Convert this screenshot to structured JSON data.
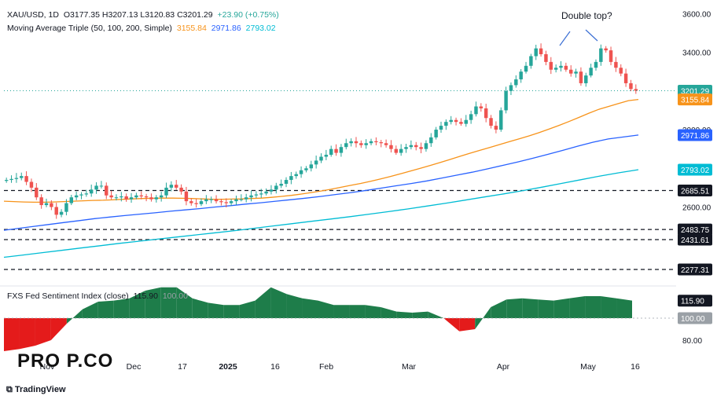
{
  "legend": {
    "symbol": "XAU/USD, 1D",
    "ohlc": "O3177.35  H3207.13  L3120.83  C3201.29",
    "change": "+23.90 (+0.75%)",
    "ma_label": "Moving Average Triple (50, 100, 200, Simple)",
    "ma50": "3155.84",
    "ma100": "2971.86",
    "ma200": "2793.02",
    "sentiment_label": "FXS Fed Sentiment Index (close)",
    "sentiment_value": "115.90",
    "sentiment_ref": "100.00"
  },
  "annotation": "Double top?",
  "brand": "TradingView",
  "logo_text": "PRO P.CO",
  "colors": {
    "up": "#26a69a",
    "down": "#ef5350",
    "ma50": "#f7931a",
    "ma100": "#2962ff",
    "ma200": "#00bcd4",
    "price_line": "#26a69a",
    "sentiment_pos": "#1e7d4a",
    "sentiment_neg": "#e41b1b"
  },
  "chart_data": {
    "type": "candlestick",
    "price_axis": {
      "min": 2200,
      "max": 3650,
      "ticks": [
        2600,
        3000,
        3200,
        3400,
        3600
      ]
    },
    "price_labels": [
      {
        "value": 3201.29,
        "text": "3201.29",
        "color": "#26a69a"
      },
      {
        "value": 3155.84,
        "text": "3155.84",
        "color": "#f7931a"
      },
      {
        "value": 2971.86,
        "text": "2971.86",
        "color": "#2962ff"
      },
      {
        "value": 2793.02,
        "text": "2793.02",
        "color": "#00bcd4"
      },
      {
        "value": 2685.51,
        "text": "2685.51",
        "color": "#131722"
      },
      {
        "value": 2483.75,
        "text": "2483.75",
        "color": "#131722"
      },
      {
        "value": 2431.61,
        "text": "2431.61",
        "color": "#131722"
      },
      {
        "value": 2277.31,
        "text": "2277.31",
        "color": "#131722"
      }
    ],
    "horizontal_levels": [
      2685.51,
      2483.75,
      2431.61,
      2277.31
    ],
    "x_labels": [
      "Nov",
      "Dec",
      "17",
      "2025",
      "16",
      "Feb",
      "Mar",
      "Apr",
      "May",
      "16"
    ],
    "closes": [
      2740,
      2745,
      2750,
      2760,
      2730,
      2700,
      2650,
      2610,
      2620,
      2600,
      2560,
      2575,
      2620,
      2650,
      2660,
      2665,
      2670,
      2690,
      2710,
      2710,
      2660,
      2650,
      2650,
      2655,
      2640,
      2650,
      2660,
      2655,
      2650,
      2640,
      2650,
      2660,
      2700,
      2715,
      2700,
      2680,
      2630,
      2620,
      2615,
      2630,
      2640,
      2640,
      2630,
      2625,
      2620,
      2630,
      2640,
      2640,
      2650,
      2660,
      2665,
      2670,
      2680,
      2690,
      2710,
      2720,
      2740,
      2760,
      2770,
      2790,
      2800,
      2820,
      2840,
      2860,
      2870,
      2900,
      2880,
      2910,
      2930,
      2940,
      2930,
      2920,
      2930,
      2940,
      2935,
      2930,
      2920,
      2900,
      2880,
      2900,
      2910,
      2920,
      2910,
      2900,
      2930,
      2960,
      3000,
      3020,
      3040,
      3050,
      3040,
      3030,
      3050,
      3080,
      3120,
      3110,
      3060,
      3020,
      3000,
      3100,
      3200,
      3230,
      3260,
      3300,
      3330,
      3380,
      3420,
      3390,
      3350,
      3310,
      3320,
      3330,
      3310,
      3290,
      3300,
      3240,
      3280,
      3320,
      3350,
      3420,
      3410,
      3350,
      3320,
      3290,
      3240,
      3210,
      3201
    ],
    "ma50": [
      2630,
      2628,
      2626,
      2625,
      2625,
      2626,
      2628,
      2630,
      2632,
      2634,
      2635,
      2637,
      2640,
      2642,
      2644,
      2645,
      2646,
      2646,
      2645,
      2644,
      2642,
      2640,
      2640,
      2641,
      2642,
      2644,
      2646,
      2650,
      2655,
      2660,
      2667,
      2675,
      2683,
      2692,
      2702,
      2712,
      2722,
      2733,
      2745,
      2758,
      2772,
      2786,
      2800,
      2815,
      2830,
      2846,
      2862,
      2878,
      2893,
      2908,
      2923,
      2938,
      2953,
      2968,
      2985,
      3003,
      3022,
      3042,
      3063,
      3085,
      3105,
      3120,
      3135,
      3150,
      3156
    ],
    "ma100": [
      2480,
      2490,
      2500,
      2510,
      2520,
      2530,
      2540,
      2548,
      2556,
      2563,
      2570,
      2578,
      2585,
      2592,
      2600,
      2607,
      2615,
      2622,
      2630,
      2638,
      2646,
      2655,
      2665,
      2675,
      2686,
      2698,
      2710,
      2722,
      2735,
      2750,
      2765,
      2780,
      2797,
      2815,
      2833,
      2852,
      2872,
      2893,
      2915,
      2935,
      2952,
      2962,
      2972
    ],
    "ma200": [
      2340,
      2352,
      2364,
      2376,
      2388,
      2400,
      2412,
      2423,
      2434,
      2445,
      2456,
      2467,
      2478,
      2490,
      2502,
      2514,
      2526,
      2538,
      2550,
      2563,
      2576,
      2590,
      2605,
      2620,
      2636,
      2652,
      2668,
      2685,
      2703,
      2722,
      2741,
      2760,
      2777,
      2793
    ],
    "sentiment": {
      "values": [
        70,
        72,
        75,
        80,
        95,
        108,
        115,
        116,
        118,
        125,
        128,
        128,
        118,
        114,
        112,
        112,
        116,
        128,
        122,
        118,
        116,
        112,
        112,
        112,
        110,
        106,
        105,
        106,
        100,
        88,
        90,
        110,
        117,
        118,
        117,
        116,
        118,
        120,
        120,
        118,
        116
      ],
      "axis_labels": [
        "80.00"
      ],
      "ref": 100
    }
  }
}
